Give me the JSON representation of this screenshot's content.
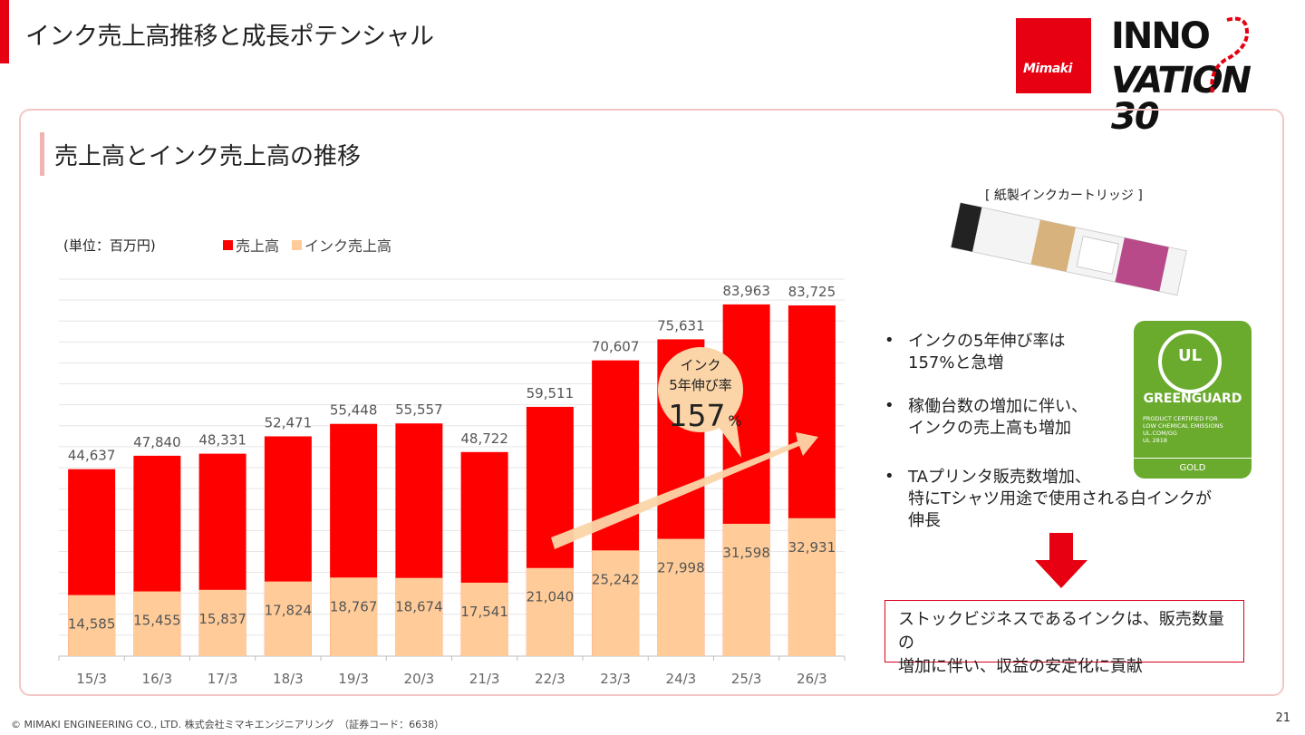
{
  "page": {
    "title": "インク売上高推移と成長ポテンシャル",
    "section_title": "売上高とインク売上高の推移",
    "page_number": "21",
    "footer": "© MIMAKI ENGINEERING CO., LTD. 株式会社ミマキエンジニアリング　（証券コード：6638）"
  },
  "logo": {
    "brand": "Mimaki",
    "innovation_line1": "INNO",
    "innovation_line2": "VATION 30"
  },
  "chart_data": {
    "type": "bar",
    "unit_label": "(単位：百万円)",
    "categories": [
      "15/3",
      "16/3",
      "17/3",
      "18/3",
      "19/3",
      "20/3",
      "21/3",
      "22/3",
      "23/3",
      "24/3",
      "25/3",
      "26/3"
    ],
    "series": [
      {
        "name": "売上高",
        "color": "#ff0000",
        "values": [
          44637,
          47840,
          48331,
          52471,
          55448,
          55557,
          48722,
          59511,
          70607,
          75631,
          83963,
          83725
        ]
      },
      {
        "name": "インク売上高",
        "color": "#ffcc99",
        "values": [
          14585,
          15455,
          15837,
          17824,
          18767,
          18674,
          17541,
          21040,
          25242,
          27998,
          31598,
          32931
        ]
      }
    ],
    "value_labels": {
      "sales": [
        "44,637",
        "47,840",
        "48,331",
        "52,471",
        "55,448",
        "55,557",
        "48,722",
        "59,511",
        "70,607",
        "75,631",
        "83,963",
        "83,725"
      ],
      "ink": [
        "14,585",
        "15,455",
        "15,837",
        "17,824",
        "18,767",
        "18,674",
        "17,541",
        "21,040",
        "25,242",
        "27,998",
        "31,598",
        "32,931"
      ]
    },
    "ylim": [
      0,
      90000
    ],
    "grid": true,
    "overlapped": true,
    "legend_position": "top",
    "callout": {
      "line1": "インク",
      "line2": "5年伸び率",
      "value": "157",
      "unit": "%",
      "color": "#fbd5a8"
    },
    "trend_arrow_color": "#fbd5a8"
  },
  "side": {
    "photo_caption": "[ 紙製インクカートリッジ ]",
    "badge": {
      "ul": "UL",
      "name": "GREENGUARD",
      "fine_print": [
        "PRODUCT CERTIFIED FOR",
        "LOW CHEMICAL EMISSIONS",
        "UL.COM/GG",
        "UL 2818"
      ],
      "tier": "GOLD",
      "color": "#6aab2e"
    },
    "bullet_mark": "•",
    "bullets": [
      [
        "インクの5年伸び率は",
        "157%と急増"
      ],
      [
        "稼働台数の増加に伴い、",
        "インクの売上高も増加"
      ],
      [
        "TAプリンタ販売数増加、",
        "特にTシャツ用途で使用される白インクが",
        "伸長"
      ]
    ],
    "conclusion": [
      "ストックビジネスであるインクは、販売数量の",
      "増加に伴い、収益の安定化に貢献"
    ],
    "arrow_color": "#e60012"
  }
}
